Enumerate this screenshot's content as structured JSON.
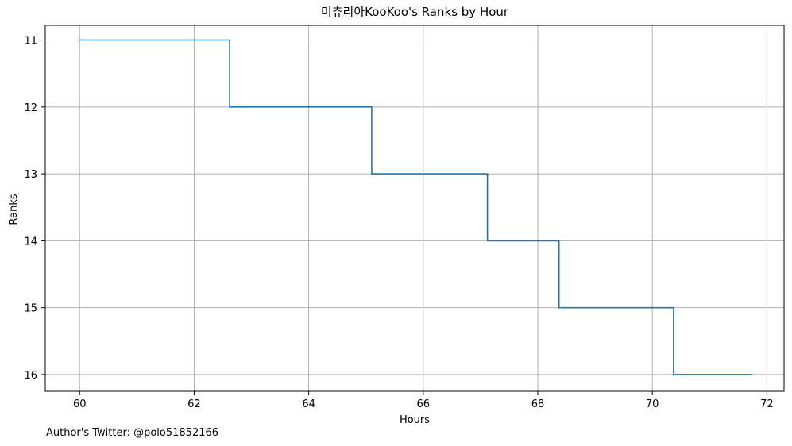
{
  "chart_data": {
    "type": "line",
    "drawstyle": "step",
    "title": "미츄리아KooKoo's Ranks by Hour",
    "xlabel": "Hours",
    "ylabel": "Ranks",
    "xlim": [
      59.4,
      72.3
    ],
    "ylim": [
      16.25,
      10.78
    ],
    "y_inverted": true,
    "grid": true,
    "x_ticks": [
      60,
      62,
      64,
      66,
      68,
      70,
      72
    ],
    "y_ticks": [
      11,
      12,
      13,
      14,
      15,
      16
    ],
    "line_color": "#1f77b4",
    "series": [
      {
        "x": [
          60,
          62.62,
          62.62,
          65.1,
          65.1,
          67.12,
          67.12,
          68.37,
          68.37,
          70.37,
          70.37,
          71.75
        ],
        "y": [
          11,
          11,
          12,
          12,
          13,
          13,
          14,
          14,
          15,
          15,
          16,
          16
        ]
      }
    ]
  },
  "footer": {
    "note": "Author's Twitter: @polo51852166"
  }
}
